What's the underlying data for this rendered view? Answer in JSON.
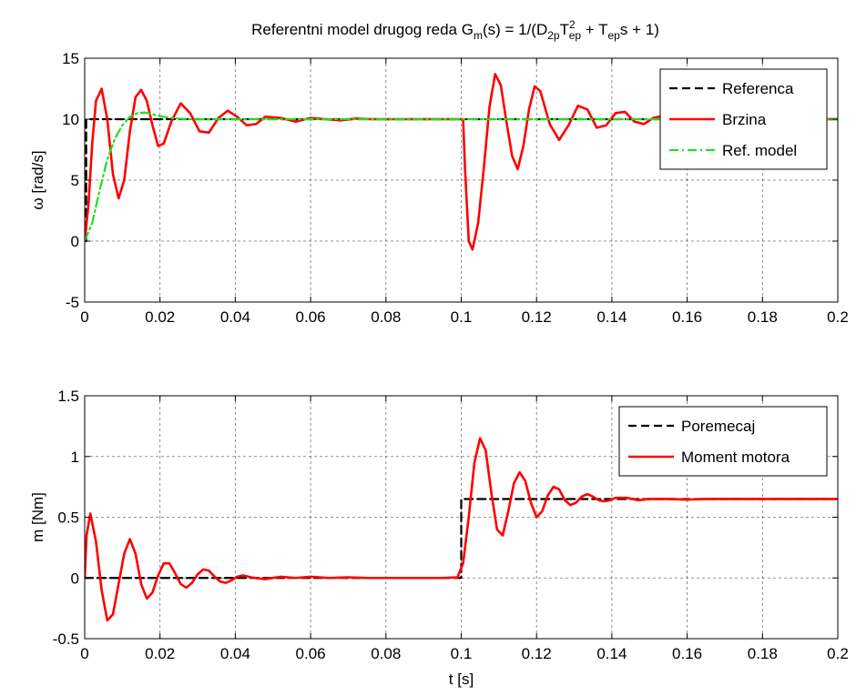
{
  "figure": {
    "title_prefix": "Referentni model drugog reda G",
    "title_sub_m": "m",
    "title_part2": "(s) = 1/(D",
    "title_sub_2p": "2p",
    "title_T1": "T",
    "title_sup_2": "2",
    "title_sub_ep1": "ep",
    "title_part3": " + T",
    "title_sub_ep2": "ep",
    "title_part4": "s + 1)"
  },
  "chart_data": [
    {
      "type": "line",
      "title": "Referentni model drugog reda Gm(s) = 1/(D2p Tep^2 + Tep s + 1)",
      "xlabel": "",
      "ylabel": "ω [rad/s]",
      "xlim": [
        0,
        0.2
      ],
      "ylim": [
        -5,
        15
      ],
      "xticks": [
        0,
        0.02,
        0.04,
        0.06,
        0.08,
        0.1,
        0.12,
        0.14,
        0.16,
        0.18,
        0.2
      ],
      "xtick_labels": [
        "0",
        "0.02",
        "0.04",
        "0.06",
        "0.08",
        "0.1",
        "0.12",
        "0.14",
        "0.16",
        "0.18",
        "0.2"
      ],
      "yticks": [
        -5,
        0,
        5,
        10,
        15
      ],
      "ytick_labels": [
        "-5",
        "0",
        "5",
        "10",
        "15"
      ],
      "grid": true,
      "legend_position": "top-right",
      "series": [
        {
          "name": "Referenca",
          "color": "#000000",
          "style": "dashed",
          "x": [
            0,
            0.0004,
            0.0004,
            0.2
          ],
          "y": [
            0,
            0,
            10,
            10
          ]
        },
        {
          "name": "Brzina",
          "color": "#ff0000",
          "style": "solid",
          "x": [
            0,
            0.001,
            0.002,
            0.003,
            0.0045,
            0.006,
            0.0075,
            0.009,
            0.0105,
            0.012,
            0.0135,
            0.015,
            0.0165,
            0.018,
            0.0195,
            0.021,
            0.023,
            0.0255,
            0.028,
            0.0305,
            0.033,
            0.0355,
            0.038,
            0.0405,
            0.043,
            0.0455,
            0.048,
            0.052,
            0.056,
            0.06,
            0.064,
            0.068,
            0.072,
            0.076,
            0.08,
            0.085,
            0.09,
            0.095,
            0.0995,
            0.1005,
            0.101,
            0.102,
            0.103,
            0.1045,
            0.106,
            0.1075,
            0.109,
            0.1105,
            0.112,
            0.1135,
            0.115,
            0.1165,
            0.118,
            0.1195,
            0.121,
            0.1235,
            0.126,
            0.1285,
            0.131,
            0.1335,
            0.136,
            0.1385,
            0.141,
            0.1435,
            0.146,
            0.1485,
            0.151,
            0.154,
            0.158,
            0.162,
            0.166,
            0.17,
            0.175,
            0.18,
            0.19,
            0.2
          ],
          "y": [
            0,
            3,
            8,
            11.5,
            12.5,
            10,
            5.5,
            3.5,
            5,
            9,
            11.8,
            12.4,
            11.5,
            9.5,
            7.8,
            8,
            9.8,
            11.3,
            10.5,
            9,
            8.9,
            10.1,
            10.7,
            10.2,
            9.5,
            9.6,
            10.2,
            10.1,
            9.8,
            10.1,
            10,
            9.9,
            10.05,
            10,
            10,
            10,
            10,
            10,
            10,
            10,
            6,
            0,
            -0.7,
            1.5,
            6,
            11,
            13.7,
            12.8,
            9.8,
            7,
            5.9,
            7.8,
            10.8,
            12.7,
            12.3,
            9.6,
            8.3,
            9.5,
            11.1,
            10.8,
            9.3,
            9.5,
            10.5,
            10.6,
            9.8,
            9.6,
            10.1,
            10.3,
            9.9,
            9.9,
            10.1,
            10,
            10,
            10,
            10,
            10
          ]
        },
        {
          "name": "Ref. model",
          "color": "#22dd22",
          "style": "dashdot",
          "x": [
            0,
            0.002,
            0.004,
            0.006,
            0.008,
            0.01,
            0.012,
            0.014,
            0.016,
            0.018,
            0.02,
            0.023,
            0.026,
            0.03,
            0.035,
            0.04,
            0.2
          ],
          "y": [
            0,
            1.5,
            4.2,
            6.7,
            8.4,
            9.5,
            10.2,
            10.5,
            10.55,
            10.4,
            10.25,
            10.1,
            10.02,
            9.98,
            10,
            10,
            10
          ]
        }
      ]
    },
    {
      "type": "line",
      "title": "",
      "xlabel": "t [s]",
      "ylabel": "m [Nm]",
      "xlim": [
        0,
        0.2
      ],
      "ylim": [
        -0.5,
        1.5
      ],
      "xticks": [
        0,
        0.02,
        0.04,
        0.06,
        0.08,
        0.1,
        0.12,
        0.14,
        0.16,
        0.18,
        0.2
      ],
      "xtick_labels": [
        "0",
        "0.02",
        "0.04",
        "0.06",
        "0.08",
        "0.1",
        "0.12",
        "0.14",
        "0.16",
        "0.18",
        "0.2"
      ],
      "yticks": [
        -0.5,
        0,
        0.5,
        1,
        1.5
      ],
      "ytick_labels": [
        "-0.5",
        "0",
        "0.5",
        "1",
        "1.5"
      ],
      "grid": true,
      "legend_position": "top-right",
      "series": [
        {
          "name": "Poremecaj",
          "color": "#000000",
          "style": "dashed",
          "x": [
            0,
            0.1,
            0.1,
            0.2
          ],
          "y": [
            0,
            0,
            0.65,
            0.65
          ]
        },
        {
          "name": "Moment motora",
          "color": "#ff0000",
          "style": "solid",
          "x": [
            0,
            0.0005,
            0.0015,
            0.003,
            0.0045,
            0.006,
            0.0075,
            0.009,
            0.0105,
            0.012,
            0.0135,
            0.015,
            0.0165,
            0.018,
            0.0195,
            0.021,
            0.0225,
            0.024,
            0.0255,
            0.027,
            0.0285,
            0.03,
            0.0315,
            0.033,
            0.0345,
            0.036,
            0.0375,
            0.039,
            0.0405,
            0.042,
            0.045,
            0.048,
            0.052,
            0.056,
            0.06,
            0.065,
            0.07,
            0.075,
            0.08,
            0.085,
            0.09,
            0.095,
            0.099,
            0.1005,
            0.102,
            0.1035,
            0.105,
            0.1065,
            0.108,
            0.1095,
            0.111,
            0.1125,
            0.114,
            0.1155,
            0.117,
            0.1185,
            0.12,
            0.1215,
            0.123,
            0.1245,
            0.126,
            0.1275,
            0.129,
            0.1305,
            0.132,
            0.1335,
            0.135,
            0.1365,
            0.138,
            0.1395,
            0.141,
            0.144,
            0.147,
            0.15,
            0.155,
            0.16,
            0.165,
            0.17,
            0.18,
            0.19,
            0.2
          ],
          "y": [
            0,
            0.35,
            0.53,
            0.3,
            -0.1,
            -0.35,
            -0.3,
            -0.05,
            0.2,
            0.32,
            0.2,
            -0.05,
            -0.17,
            -0.12,
            0.02,
            0.12,
            0.12,
            0.04,
            -0.05,
            -0.08,
            -0.04,
            0.03,
            0.07,
            0.06,
            0.01,
            -0.03,
            -0.04,
            -0.02,
            0.01,
            0.02,
            0,
            -0.01,
            0.01,
            0,
            0.01,
            0,
            0.005,
            0,
            0,
            0,
            0,
            0,
            0.005,
            0.12,
            0.5,
            0.95,
            1.15,
            1.05,
            0.7,
            0.4,
            0.35,
            0.55,
            0.78,
            0.87,
            0.8,
            0.62,
            0.5,
            0.55,
            0.68,
            0.75,
            0.73,
            0.64,
            0.6,
            0.62,
            0.67,
            0.69,
            0.67,
            0.64,
            0.63,
            0.64,
            0.66,
            0.66,
            0.64,
            0.65,
            0.65,
            0.645,
            0.65,
            0.65,
            0.65,
            0.65,
            0.65
          ]
        }
      ]
    }
  ]
}
